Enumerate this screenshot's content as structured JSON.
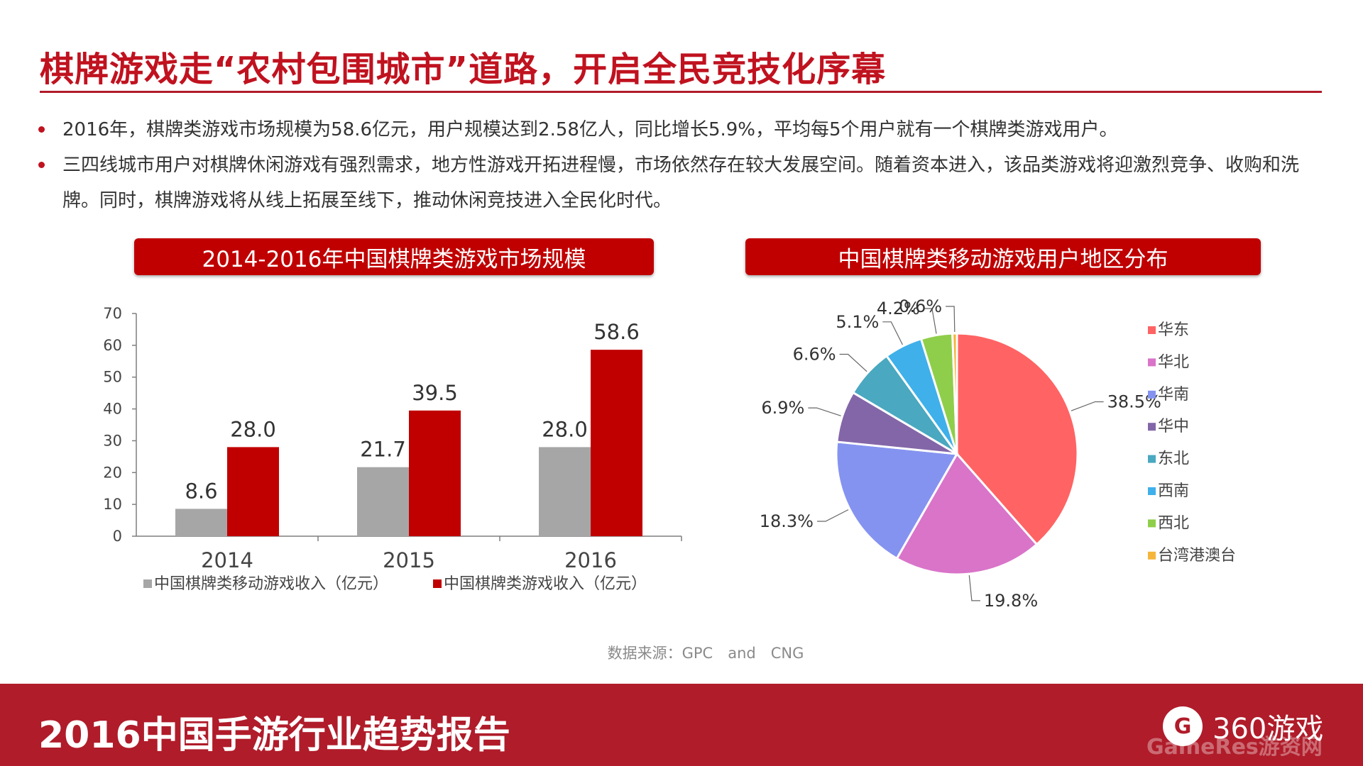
{
  "header": {
    "title": "棋牌游戏走“农村包围城市”道路，开启全民竞技化序幕"
  },
  "bullets": [
    "2016年，棋牌类游戏市场规模为58.6亿元，用户规模达到2.58亿人，同比增长5.9%，平均每5个用户就有一个棋牌类游戏用户。",
    "三四线城市用户对棋牌休闲游戏有强烈需求，地方性游戏开拓进程慢，市场依然存在较大发展空间。随着资本进入，该品类游戏将迎激烈竞争、收购和洗牌。同时，棋牌游戏将从线上拓展至线下，推动休闲竞技进入全民化时代。"
  ],
  "colors": {
    "accent": "#c00000",
    "footer": "#b01c2a"
  },
  "chart_data": [
    {
      "type": "bar",
      "title": "2014-2016年中国棋牌类游戏市场规模",
      "categories": [
        "2014",
        "2015",
        "2016"
      ],
      "series": [
        {
          "name": "中国棋牌类移动游戏收入（亿元）",
          "values": [
            8.6,
            21.7,
            28.0
          ],
          "labels": [
            "8.6",
            "21.7",
            "28.0"
          ],
          "color": "#a6a6a6"
        },
        {
          "name": "中国棋牌类游戏收入（亿元）",
          "values": [
            28.0,
            39.5,
            58.6
          ],
          "labels": [
            "28.0",
            "39.5",
            "58.6"
          ],
          "color": "#c00000"
        }
      ],
      "ylim": [
        0,
        70
      ],
      "yticks": [
        "0",
        "10",
        "20",
        "30",
        "40",
        "50",
        "60",
        "70"
      ],
      "legend": "bottom"
    },
    {
      "type": "pie",
      "title": "中国棋牌类移动游戏用户地区分布",
      "categories": [
        "华东",
        "华北",
        "华南",
        "华中",
        "东北",
        "西南",
        "西北",
        "台湾港澳台"
      ],
      "values": [
        38.5,
        19.8,
        18.3,
        6.9,
        6.6,
        5.1,
        4.2,
        0.6
      ],
      "labels": [
        "38.5%",
        "19.8%",
        "18.3%",
        "6.9%",
        "6.6%",
        "5.1%",
        "4.2%",
        "0.6%"
      ],
      "colors": [
        "#ff6363",
        "#d974c9",
        "#8593f0",
        "#8366a8",
        "#4aa8c0",
        "#3fb0ea",
        "#8fce4a",
        "#f5b53a"
      ],
      "legend": "right"
    }
  ],
  "source": "数据来源：GPC　and　CNG",
  "footer": {
    "title": "2016中国手游行业趋势报告",
    "logo_text": "360游戏",
    "watermark": "GameRes游资网"
  }
}
